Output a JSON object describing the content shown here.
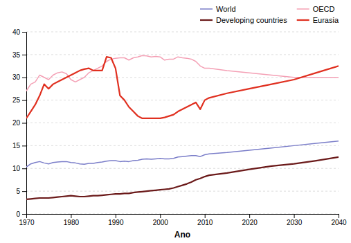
{
  "chart_data": {
    "type": "line",
    "x_label": "Ano",
    "x": [
      1970,
      1971,
      1972,
      1973,
      1974,
      1975,
      1976,
      1977,
      1978,
      1979,
      1980,
      1981,
      1982,
      1983,
      1984,
      1985,
      1986,
      1987,
      1988,
      1989,
      1990,
      1991,
      1992,
      1993,
      1994,
      1995,
      1996,
      1997,
      1998,
      1999,
      2000,
      2001,
      2002,
      2003,
      2004,
      2005,
      2006,
      2007,
      2008,
      2009,
      2010,
      2011,
      2015,
      2020,
      2025,
      2030,
      2035,
      2040
    ],
    "series": [
      {
        "name": "World",
        "color": "#7B7EC9",
        "values": [
          10.3,
          11.0,
          11.3,
          11.5,
          11.2,
          11.0,
          11.3,
          11.4,
          11.5,
          11.5,
          11.3,
          11.2,
          11.0,
          10.9,
          11.1,
          11.1,
          11.3,
          11.4,
          11.6,
          11.7,
          11.7,
          11.5,
          11.6,
          11.5,
          11.7,
          11.8,
          12.0,
          12.1,
          12.0,
          12.1,
          12.2,
          12.1,
          12.1,
          12.2,
          12.5,
          12.6,
          12.7,
          12.8,
          12.8,
          12.6,
          13.0,
          13.2,
          13.5,
          14.0,
          14.5,
          15.0,
          15.5,
          16.0
        ]
      },
      {
        "name": "OECD",
        "color": "#F4A0B5",
        "values": [
          27.0,
          28.5,
          29.0,
          30.5,
          30.0,
          29.5,
          30.5,
          31.0,
          31.2,
          30.8,
          29.5,
          29.0,
          29.5,
          30.0,
          31.0,
          31.5,
          32.0,
          32.5,
          33.5,
          34.0,
          34.2,
          34.3,
          34.3,
          33.8,
          34.3,
          34.5,
          34.8,
          34.7,
          34.5,
          34.6,
          34.5,
          33.8,
          34.0,
          34.0,
          34.5,
          34.3,
          34.2,
          34.0,
          33.5,
          32.5,
          32.0,
          32.0,
          31.5,
          31.0,
          30.5,
          30.0,
          30.0,
          30.0
        ]
      },
      {
        "name": "Developing countries",
        "color": "#6B1A1A",
        "values": [
          3.2,
          3.3,
          3.4,
          3.5,
          3.5,
          3.5,
          3.6,
          3.7,
          3.8,
          3.9,
          4.0,
          3.9,
          3.8,
          3.8,
          3.9,
          4.0,
          4.0,
          4.1,
          4.2,
          4.3,
          4.4,
          4.4,
          4.5,
          4.5,
          4.7,
          4.8,
          4.9,
          5.0,
          5.1,
          5.2,
          5.3,
          5.4,
          5.5,
          5.7,
          6.0,
          6.3,
          6.6,
          7.0,
          7.5,
          7.8,
          8.2,
          8.5,
          9.0,
          9.8,
          10.5,
          11.0,
          11.7,
          12.5
        ]
      },
      {
        "name": "Eurasia",
        "color": "#E03020",
        "values": [
          21.0,
          22.5,
          24.0,
          26.0,
          28.5,
          27.5,
          28.5,
          29.0,
          29.5,
          30.0,
          30.5,
          31.0,
          31.5,
          31.8,
          32.0,
          31.5,
          31.5,
          31.5,
          34.5,
          34.3,
          32.0,
          26.0,
          25.0,
          23.5,
          22.5,
          21.5,
          21.0,
          21.0,
          21.0,
          21.0,
          21.0,
          21.2,
          21.5,
          21.8,
          22.5,
          23.0,
          23.5,
          24.0,
          24.5,
          23.0,
          25.0,
          25.5,
          26.5,
          27.5,
          28.5,
          29.5,
          31.0,
          32.5
        ]
      }
    ],
    "xlim": [
      1970,
      2040
    ],
    "ylim": [
      0,
      40
    ],
    "xticks": [
      1970,
      1980,
      1990,
      2000,
      2010,
      2020,
      2030,
      2040
    ],
    "yticks": [
      0,
      5,
      10,
      15,
      20,
      25,
      30,
      35,
      40
    ],
    "grid": true,
    "legend": "top-right"
  }
}
